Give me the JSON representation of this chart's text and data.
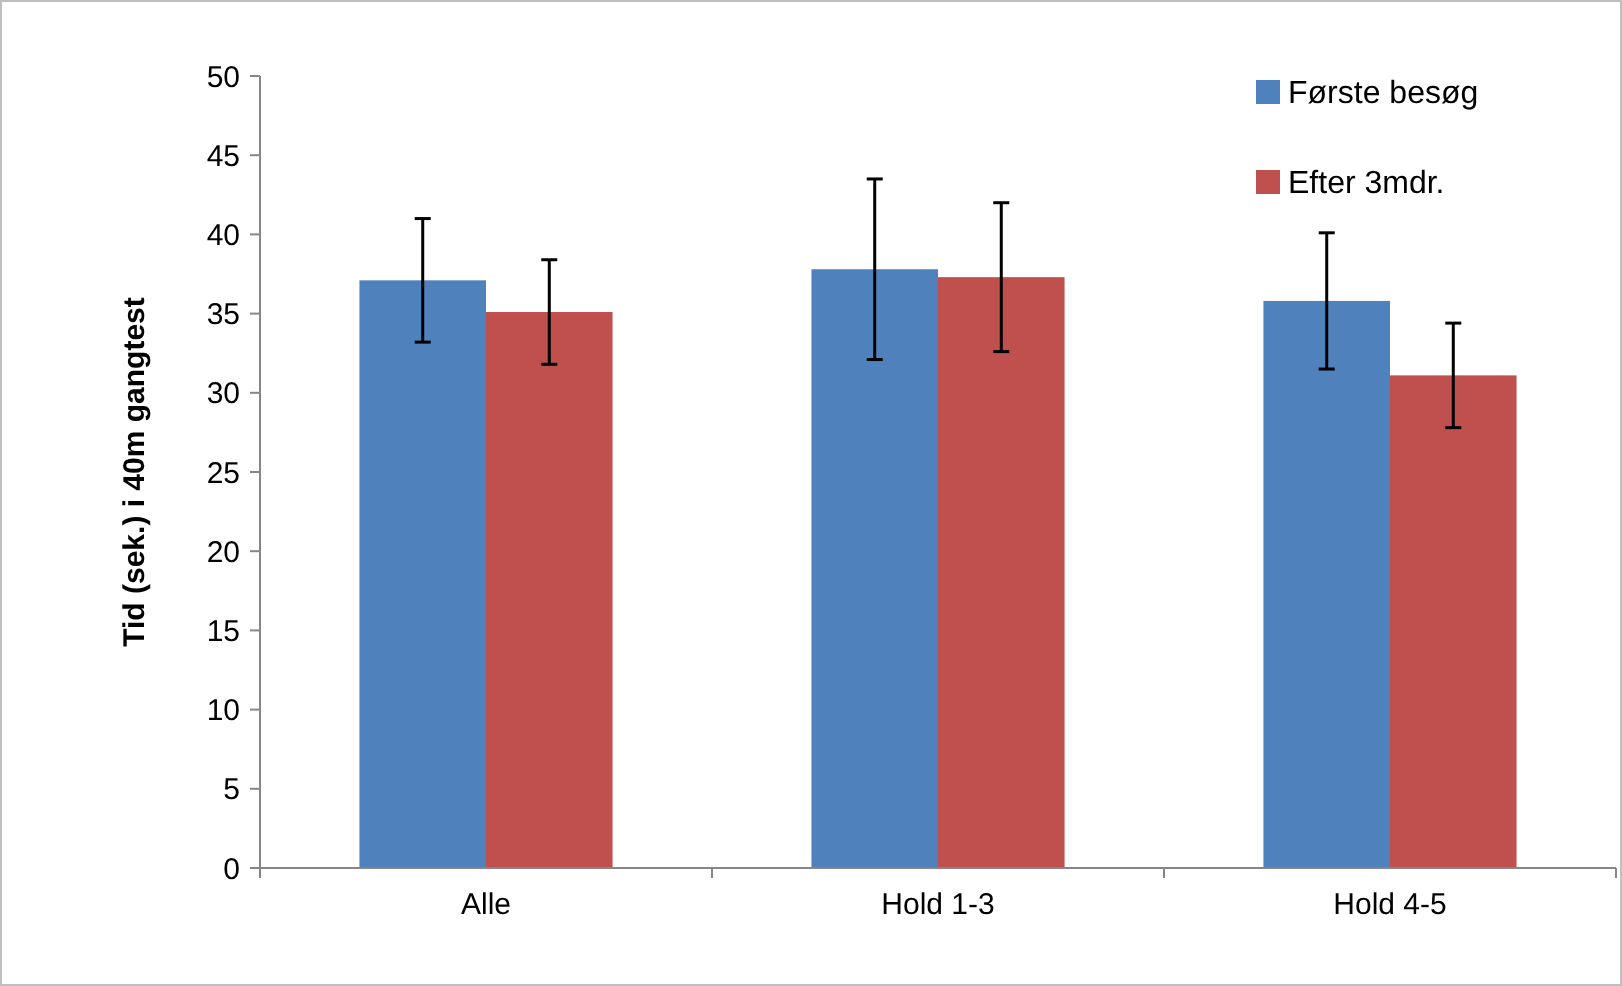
{
  "chart_data": {
    "type": "bar",
    "ylabel": "Tid (sek.) i 40m gangtest",
    "categories": [
      "Alle",
      "Hold 1-3",
      "Hold 4-5"
    ],
    "series": [
      {
        "name": "Første besøg",
        "color": "#4f81bd",
        "values": [
          37.1,
          37.8,
          35.8
        ],
        "errors": [
          3.9,
          5.7,
          4.3
        ]
      },
      {
        "name": "Efter 3mdr.",
        "color": "#c0504d",
        "values": [
          35.1,
          37.3,
          31.1
        ],
        "errors": [
          3.3,
          4.7,
          3.3
        ]
      }
    ],
    "ylim": [
      0,
      50
    ],
    "yticks": [
      0,
      5,
      10,
      15,
      20,
      25,
      30,
      35,
      40,
      45,
      50
    ],
    "grid": false,
    "legend": "top right"
  }
}
